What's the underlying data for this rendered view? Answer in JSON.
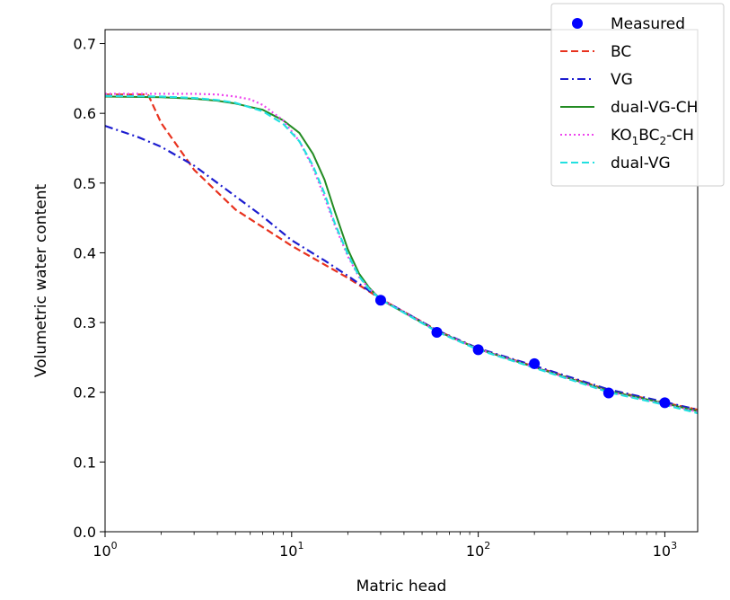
{
  "chart_data": {
    "type": "line",
    "title": "",
    "xlabel": "Matric head",
    "ylabel": "Volumetric water content",
    "xscale": "log",
    "xlim": [
      1,
      1500
    ],
    "ylim": [
      0,
      0.72
    ],
    "x_ticks": [
      {
        "value": 1,
        "base": "10",
        "exp": "0"
      },
      {
        "value": 10,
        "base": "10",
        "exp": "1"
      },
      {
        "value": 100,
        "base": "10",
        "exp": "2"
      },
      {
        "value": 1000,
        "base": "10",
        "exp": "3"
      }
    ],
    "y_ticks": [
      "0.0",
      "0.1",
      "0.2",
      "0.3",
      "0.4",
      "0.5",
      "0.6",
      "0.7"
    ],
    "grid": false,
    "legend_position": "top-right",
    "measured": {
      "name": "Measured",
      "color": "#0000ff",
      "points": [
        [
          30,
          0.332
        ],
        [
          60,
          0.286
        ],
        [
          100,
          0.261
        ],
        [
          200,
          0.241
        ],
        [
          500,
          0.199
        ],
        [
          1000,
          0.185
        ]
      ]
    },
    "series": [
      {
        "name": "BC",
        "color": "#e8321e",
        "style": "dashed",
        "points": [
          [
            1,
            0.627
          ],
          [
            1.7,
            0.627
          ],
          [
            2,
            0.586
          ],
          [
            3,
            0.519
          ],
          [
            5,
            0.462
          ],
          [
            10,
            0.41
          ],
          [
            20,
            0.364
          ],
          [
            30,
            0.334
          ],
          [
            60,
            0.289
          ],
          [
            100,
            0.262
          ],
          [
            200,
            0.237
          ],
          [
            500,
            0.203
          ],
          [
            1000,
            0.185
          ],
          [
            1500,
            0.175
          ]
        ]
      },
      {
        "name": "VG",
        "color": "#1c1ccf",
        "style": "dashdot",
        "points": [
          [
            1,
            0.582
          ],
          [
            1.5,
            0.566
          ],
          [
            2,
            0.552
          ],
          [
            3,
            0.525
          ],
          [
            5,
            0.481
          ],
          [
            7,
            0.452
          ],
          [
            10,
            0.418
          ],
          [
            15,
            0.389
          ],
          [
            20,
            0.367
          ],
          [
            30,
            0.334
          ],
          [
            60,
            0.289
          ],
          [
            100,
            0.263
          ],
          [
            200,
            0.238
          ],
          [
            500,
            0.204
          ],
          [
            1000,
            0.186
          ],
          [
            1500,
            0.175
          ]
        ]
      },
      {
        "name": "dual-VG-CH",
        "color": "#228b22",
        "style": "solid",
        "points": [
          [
            1,
            0.624
          ],
          [
            2,
            0.623
          ],
          [
            3,
            0.621
          ],
          [
            4,
            0.618
          ],
          [
            5,
            0.614
          ],
          [
            7,
            0.605
          ],
          [
            9,
            0.59
          ],
          [
            11,
            0.572
          ],
          [
            13,
            0.542
          ],
          [
            15,
            0.505
          ],
          [
            17,
            0.46
          ],
          [
            20,
            0.405
          ],
          [
            23,
            0.37
          ],
          [
            26,
            0.35
          ],
          [
            30,
            0.333
          ],
          [
            60,
            0.288
          ],
          [
            100,
            0.262
          ],
          [
            200,
            0.236
          ],
          [
            500,
            0.202
          ],
          [
            1000,
            0.184
          ],
          [
            1500,
            0.173
          ]
        ]
      },
      {
        "name": "KO$_1$BC$_2$-CH",
        "label_main": "KO",
        "label_sub1": "1",
        "label_mid": "BC",
        "label_sub2": "2",
        "label_tail": "-CH",
        "color": "#ee44ee",
        "style": "dotted",
        "points": [
          [
            1,
            0.628
          ],
          [
            3,
            0.628
          ],
          [
            4,
            0.627
          ],
          [
            5,
            0.624
          ],
          [
            6,
            0.62
          ],
          [
            7,
            0.612
          ],
          [
            9,
            0.59
          ],
          [
            11,
            0.56
          ],
          [
            13,
            0.522
          ],
          [
            15,
            0.48
          ],
          [
            17,
            0.44
          ],
          [
            20,
            0.395
          ],
          [
            23,
            0.365
          ],
          [
            26,
            0.349
          ],
          [
            30,
            0.334
          ],
          [
            60,
            0.288
          ],
          [
            100,
            0.262
          ],
          [
            200,
            0.236
          ],
          [
            500,
            0.201
          ],
          [
            1000,
            0.183
          ],
          [
            1500,
            0.172
          ]
        ]
      },
      {
        "name": "dual-VG",
        "color": "#22e0e0",
        "style": "dashed",
        "points": [
          [
            1,
            0.625
          ],
          [
            2,
            0.624
          ],
          [
            3,
            0.622
          ],
          [
            4,
            0.619
          ],
          [
            5,
            0.615
          ],
          [
            7,
            0.603
          ],
          [
            9,
            0.585
          ],
          [
            11,
            0.56
          ],
          [
            13,
            0.525
          ],
          [
            15,
            0.485
          ],
          [
            17,
            0.443
          ],
          [
            20,
            0.398
          ],
          [
            23,
            0.366
          ],
          [
            26,
            0.348
          ],
          [
            30,
            0.333
          ],
          [
            60,
            0.287
          ],
          [
            100,
            0.261
          ],
          [
            200,
            0.235
          ],
          [
            500,
            0.2
          ],
          [
            1000,
            0.182
          ],
          [
            1500,
            0.17
          ]
        ]
      }
    ]
  }
}
